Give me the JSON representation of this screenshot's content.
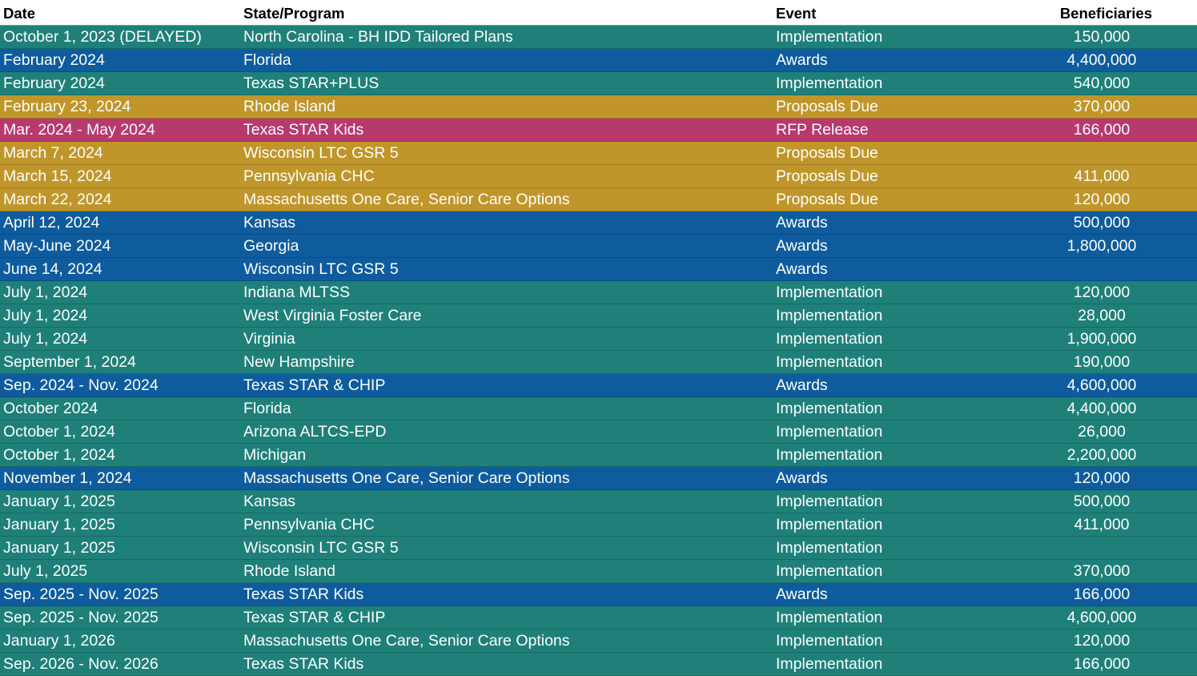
{
  "colors": {
    "teal": "#1e8079",
    "blue": "#0e5c9e",
    "gold": "#c0962a",
    "magenta": "#b83a6d"
  },
  "table": {
    "headers": {
      "date": "Date",
      "program": "State/Program",
      "event": "Event",
      "beneficiaries": "Beneficiaries"
    },
    "rows": [
      {
        "date": "October 1, 2023 (DELAYED)",
        "program": "North Carolina -  BH IDD Tailored Plans",
        "event": "Implementation",
        "beneficiaries": "150,000",
        "color": "teal"
      },
      {
        "date": "February 2024",
        "program": "Florida",
        "event": "Awards",
        "beneficiaries": "4,400,000",
        "color": "blue"
      },
      {
        "date": "February 2024",
        "program": "Texas STAR+PLUS",
        "event": "Implementation",
        "beneficiaries": "540,000",
        "color": "teal"
      },
      {
        "date": "February 23, 2024",
        "program": "Rhode Island",
        "event": "Proposals Due",
        "beneficiaries": "370,000",
        "color": "gold"
      },
      {
        "date": "Mar. 2024 - May 2024",
        "program": "Texas STAR Kids",
        "event": "RFP Release",
        "beneficiaries": "166,000",
        "color": "magenta"
      },
      {
        "date": "March 7, 2024",
        "program": "Wisconsin LTC GSR 5",
        "event": "Proposals Due",
        "beneficiaries": "",
        "color": "gold"
      },
      {
        "date": "March 15, 2024",
        "program": "Pennsylvania CHC",
        "event": "Proposals Due",
        "beneficiaries": "411,000",
        "color": "gold"
      },
      {
        "date": "March 22, 2024",
        "program": "Massachusetts One Care, Senior Care Options",
        "event": "Proposals Due",
        "beneficiaries": "120,000",
        "color": "gold"
      },
      {
        "date": "April 12, 2024",
        "program": "Kansas",
        "event": "Awards",
        "beneficiaries": "500,000",
        "color": "blue"
      },
      {
        "date": "May-June 2024",
        "program": "Georgia",
        "event": "Awards",
        "beneficiaries": "1,800,000",
        "color": "blue"
      },
      {
        "date": "June 14, 2024",
        "program": "Wisconsin LTC GSR 5",
        "event": "Awards",
        "beneficiaries": "",
        "color": "blue"
      },
      {
        "date": "July 1, 2024",
        "program": "Indiana MLTSS",
        "event": "Implementation",
        "beneficiaries": "120,000",
        "color": "teal"
      },
      {
        "date": "July 1, 2024",
        "program": "West Virginia Foster Care",
        "event": "Implementation",
        "beneficiaries": "28,000",
        "color": "teal"
      },
      {
        "date": "July 1, 2024",
        "program": "Virginia",
        "event": "Implementation",
        "beneficiaries": "1,900,000",
        "color": "teal"
      },
      {
        "date": "September 1, 2024",
        "program": "New Hampshire",
        "event": "Implementation",
        "beneficiaries": "190,000",
        "color": "teal"
      },
      {
        "date": "Sep. 2024 - Nov. 2024",
        "program": "Texas STAR & CHIP",
        "event": "Awards",
        "beneficiaries": "4,600,000",
        "color": "blue"
      },
      {
        "date": "October 2024",
        "program": "Florida",
        "event": "Implementation",
        "beneficiaries": "4,400,000",
        "color": "teal"
      },
      {
        "date": "October 1, 2024",
        "program": "Arizona ALTCS-EPD",
        "event": "Implementation",
        "beneficiaries": "26,000",
        "color": "teal"
      },
      {
        "date": "October 1, 2024",
        "program": "Michigan",
        "event": "Implementation",
        "beneficiaries": "2,200,000",
        "color": "teal"
      },
      {
        "date": "November 1, 2024",
        "program": "Massachusetts One Care, Senior Care Options",
        "event": "Awards",
        "beneficiaries": "120,000",
        "color": "blue"
      },
      {
        "date": "January 1, 2025",
        "program": "Kansas",
        "event": "Implementation",
        "beneficiaries": "500,000",
        "color": "teal"
      },
      {
        "date": "January 1, 2025",
        "program": "Pennsylvania CHC",
        "event": "Implementation",
        "beneficiaries": "411,000",
        "color": "teal"
      },
      {
        "date": "January 1, 2025",
        "program": "Wisconsin LTC GSR 5",
        "event": "Implementation",
        "beneficiaries": "",
        "color": "teal"
      },
      {
        "date": "July 1, 2025",
        "program": "Rhode Island",
        "event": "Implementation",
        "beneficiaries": "370,000",
        "color": "teal"
      },
      {
        "date": "Sep. 2025 - Nov. 2025",
        "program": "Texas STAR Kids",
        "event": "Awards",
        "beneficiaries": "166,000",
        "color": "blue"
      },
      {
        "date": "Sep. 2025 - Nov. 2025",
        "program": "Texas STAR & CHIP",
        "event": "Implementation",
        "beneficiaries": "4,600,000",
        "color": "teal"
      },
      {
        "date": "January 1, 2026",
        "program": "Massachusetts One Care, Senior Care Options",
        "event": "Implementation",
        "beneficiaries": "120,000",
        "color": "teal"
      },
      {
        "date": "Sep. 2026 - Nov. 2026",
        "program": "Texas STAR Kids",
        "event": "Implementation",
        "beneficiaries": "166,000",
        "color": "teal"
      }
    ]
  }
}
